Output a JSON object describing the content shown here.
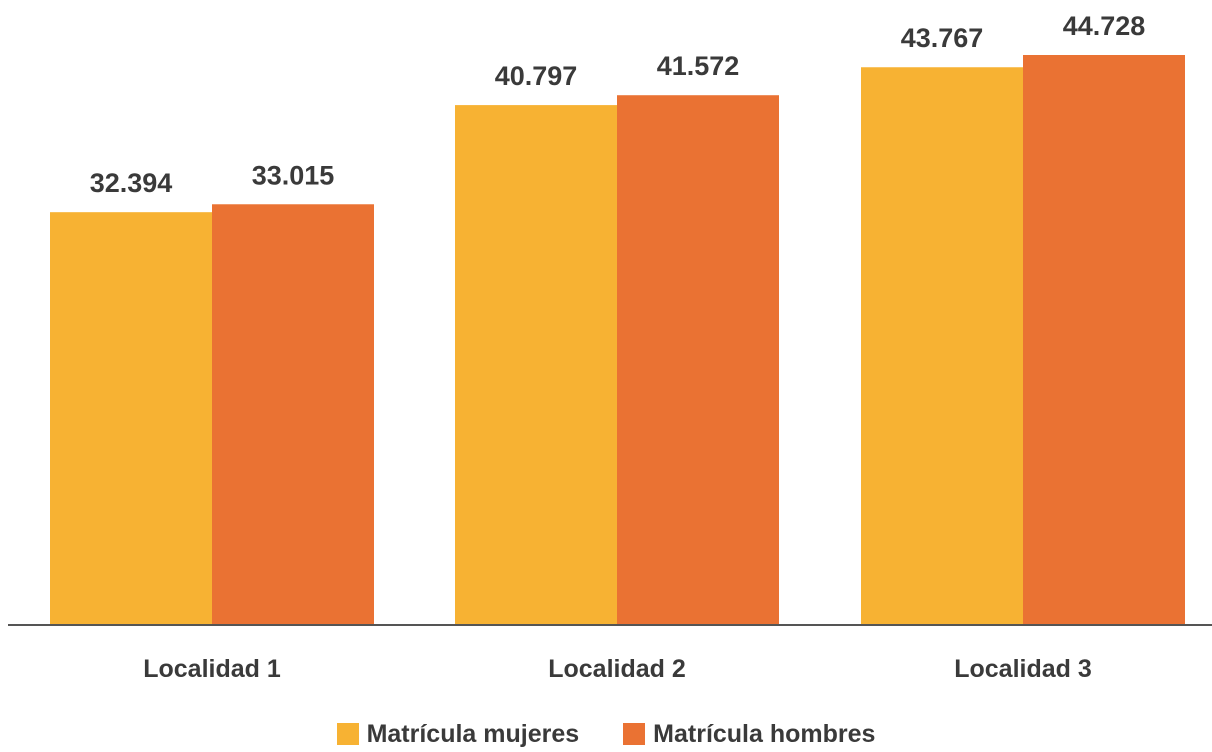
{
  "chart_data": {
    "type": "bar",
    "categories": [
      "Localidad 1",
      "Localidad 2",
      "Localidad 3"
    ],
    "series": [
      {
        "name": "Matrícula mujeres",
        "values": [
          32394,
          40797,
          43767
        ],
        "value_labels": [
          "32.394",
          "40.797",
          "43.767"
        ],
        "color": "#F7B233"
      },
      {
        "name": "Matrícula hombres",
        "values": [
          33015,
          41572,
          44728
        ],
        "value_labels": [
          "33.015",
          "41.572",
          "44.728"
        ],
        "color": "#EA7233"
      }
    ],
    "title": "",
    "xlabel": "",
    "ylabel": "",
    "ylim": [
      0,
      50000
    ],
    "grid": false,
    "legend_position": "bottom"
  }
}
